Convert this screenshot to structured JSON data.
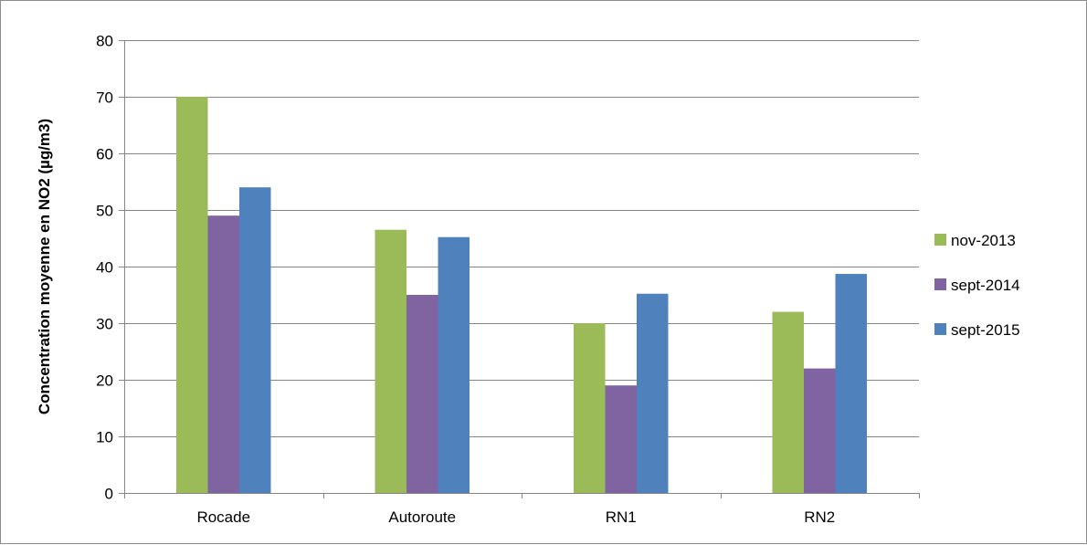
{
  "chart_data": {
    "type": "bar",
    "title": "",
    "xlabel": "",
    "ylabel": "Concentration moyenne en NO2 (µg/m3)",
    "ylim": [
      0,
      80
    ],
    "yticks": [
      0,
      10,
      20,
      30,
      40,
      50,
      60,
      70,
      80
    ],
    "grid": true,
    "legend_position": "right",
    "categories": [
      "Rocade",
      "Autoroute",
      "RN1",
      "RN2"
    ],
    "series": [
      {
        "name": "nov-2013",
        "color": "#9bbb59",
        "values": [
          70,
          46.5,
          30,
          32
        ]
      },
      {
        "name": "sept-2014",
        "color": "#8064a2",
        "values": [
          49,
          35,
          19,
          22
        ]
      },
      {
        "name": "sept-2015",
        "color": "#4f81bd",
        "values": [
          54,
          45.2,
          35.2,
          38.7
        ]
      }
    ]
  }
}
